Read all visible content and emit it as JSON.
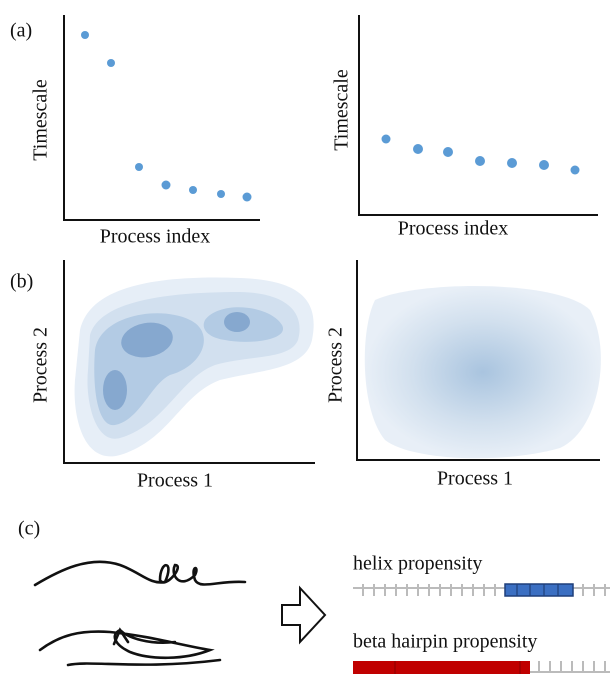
{
  "panels": [
    {
      "label": "(a)",
      "plots": [
        {
          "x_label": "Process index",
          "y_label": "Timescale"
        },
        {
          "x_label": "Process index",
          "y_label": "Timescale"
        }
      ]
    },
    {
      "label": "(b)",
      "plots": [
        {
          "x_label": "Process 1",
          "y_label": "Process 2"
        },
        {
          "x_label": "Process 1",
          "y_label": "Process 2"
        }
      ]
    },
    {
      "label": "(c)",
      "rows": [
        "helix propensity",
        "beta hairpin propensity"
      ]
    }
  ]
}
